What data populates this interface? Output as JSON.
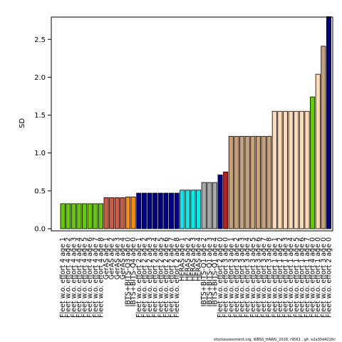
{
  "chart_data": {
    "type": "bar",
    "ylabel": "SD",
    "ylim": [
      0,
      2.8
    ],
    "yticks": [
      0.0,
      0.5,
      1.0,
      1.5,
      2.0,
      2.5
    ],
    "ytick_labels": [
      "0.0",
      "0.5",
      "1.0",
      "1.5",
      "2.0",
      "2.5"
    ],
    "grid": false,
    "bar_stroke": "#000000",
    "categories": [
      "Fleet w.o. effort 4 age 1",
      "Fleet w.o. effort 4 age 2",
      "Fleet w.o. effort 4 age 3",
      "Fleet w.o. effort 4 age 4",
      "Fleet w.o. effort 4 age 5",
      "Fleet w.o. effort 4 age 6",
      "Fleet w.o. effort 4 age 7",
      "Fleet w.o. effort 4 age 8",
      "GerAS age 1",
      "GerAS age 2",
      "GerAS age 3",
      "GerAS age 4",
      "IBTS+BITS-Q3 age 0",
      "IBTS+BITS-Q4 age 0",
      "Fleet w.o. effort 2 age 1",
      "Fleet w.o. effort 2 age 2",
      "Fleet w.o. effort 2 age 3",
      "Fleet w.o. effort 2 age 4",
      "Fleet w.o. effort 2 age 5",
      "Fleet w.o. effort 2 age 6",
      "Fleet w.o. effort 2 age 7",
      "Fleet w.o. effort 2 age 8",
      "HERAS age 1",
      "HERAS age 2",
      "HERAS age 3",
      "HERAS age 4",
      "IBTS+BITS-Q1 age 2",
      "IBTS+BITS-Q1 age 3",
      "IBTS+BITS-Q1 age 4",
      "Fleet w.o. effort 2 age 0",
      "Fleet w.o. effort 3 age 0",
      "Fleet w.o. effort 3 age 1",
      "Fleet w.o. effort 3 age 2",
      "Fleet w.o. effort 3 age 3",
      "Fleet w.o. effort 3 age 4",
      "Fleet w.o. effort 3 age 5",
      "Fleet w.o. effort 3 age 6",
      "Fleet w.o. effort 3 age 7",
      "Fleet w.o. effort 3 age 8",
      "Fleet w.o. effort 1 age 1",
      "Fleet w.o. effort 1 age 2",
      "Fleet w.o. effort 1 age 3",
      "Fleet w.o. effort 1 age 4",
      "Fleet w.o. effort 1 age 5",
      "Fleet w.o. effort 1 age 6",
      "Fleet w.o. effort 1 age 7",
      "Fleet w.o. effort 4 age 0",
      "Fleet w.o. effort 1 age 0",
      "Fleet w.o. effort 3 age 0",
      "Fleet w.o. effort 2 age 0"
    ],
    "values": [
      0.33,
      0.33,
      0.33,
      0.33,
      0.33,
      0.33,
      0.33,
      0.33,
      0.41,
      0.41,
      0.41,
      0.41,
      0.42,
      0.42,
      0.47,
      0.47,
      0.47,
      0.47,
      0.47,
      0.47,
      0.47,
      0.47,
      0.51,
      0.51,
      0.51,
      0.51,
      0.61,
      0.61,
      0.61,
      0.71,
      0.75,
      1.22,
      1.22,
      1.22,
      1.22,
      1.22,
      1.22,
      1.22,
      1.22,
      1.55,
      1.55,
      1.55,
      1.55,
      1.55,
      1.55,
      1.55,
      1.74,
      2.04,
      2.41,
      2.8
    ],
    "colors": [
      "#66cc00",
      "#66cc00",
      "#66cc00",
      "#66cc00",
      "#66cc00",
      "#66cc00",
      "#66cc00",
      "#66cc00",
      "#cd5c45",
      "#cd5c45",
      "#cd5c45",
      "#cd5c45",
      "#ff8c00",
      "#ff8c00",
      "#00008b",
      "#00008b",
      "#00008b",
      "#00008b",
      "#00008b",
      "#00008b",
      "#00008b",
      "#00008b",
      "#00eeee",
      "#00eeee",
      "#00eeee",
      "#00eeee",
      "#a9a9a9",
      "#a9a9a9",
      "#a9a9a9",
      "#00008b",
      "#b22222",
      "#c8a07a",
      "#c8a07a",
      "#c8a07a",
      "#c8a07a",
      "#c8a07a",
      "#c8a07a",
      "#c8a07a",
      "#c8a07a",
      "#ffdab5",
      "#ffdab5",
      "#ffdab5",
      "#ffdab5",
      "#ffdab5",
      "#ffdab5",
      "#ffdab5",
      "#66cc00",
      "#ffdab5",
      "#c8a07a",
      "#00008b"
    ]
  },
  "footer": "stockassessment.org, WBSS_HAWG_2018, r9561 , git: e2a30d4216c"
}
